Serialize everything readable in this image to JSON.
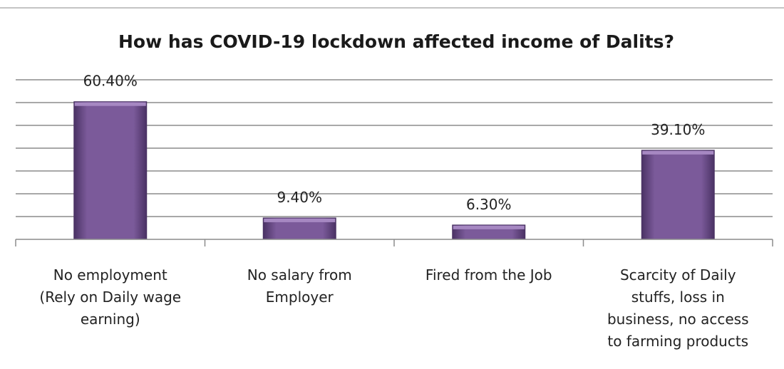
{
  "chart_data": {
    "type": "bar",
    "title": "How has COVID-19 lockdown affected income of Dalits?",
    "categories": [
      [
        "No employment",
        "(Rely on Daily wage",
        "earning)"
      ],
      [
        "No salary from",
        "Employer"
      ],
      [
        "Fired from the Job"
      ],
      [
        "Scarcity of Daily",
        "stuffs, loss in",
        "business, no access",
        "to farming products"
      ]
    ],
    "values": [
      60.4,
      9.4,
      6.3,
      39.1
    ],
    "data_labels": [
      "60.40%",
      "9.40%",
      "6.30%",
      "39.10%"
    ],
    "ylim": [
      0,
      70
    ],
    "grid": true,
    "legend": "none",
    "colors": {
      "bar": "#7b5a9a",
      "bar_top": "#a688c2",
      "bar_edge": "#4a3264",
      "grid": "#8c8c8c",
      "axis": "#8c8c8c"
    }
  }
}
